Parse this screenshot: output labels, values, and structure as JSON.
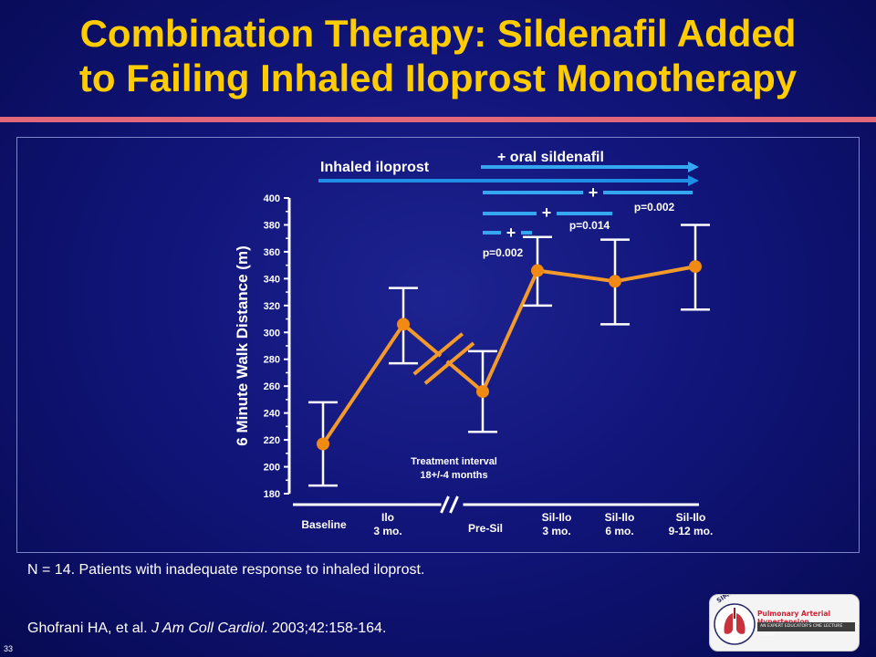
{
  "title_lines": [
    "Combination Therapy: Sildenafil Added",
    "to Failing Inhaled Iloprost Monotherapy"
  ],
  "footnote": "N = 14. Patients with inadequate response to inhaled iloprost.",
  "citation": {
    "prefix": "Ghofrani HA, et al. ",
    "journal": "J Am Coll Cardiol",
    "suffix": ". 2003;42:158-164."
  },
  "slide_number": "33",
  "logo": {
    "arc_text": "SIMPLY SPEAKING",
    "name": "Pulmonary Arterial Hypertension",
    "tagline": "AN EXPERT EDUCATOR'S CME LECTURE SERIES"
  },
  "colors": {
    "title": "#ffcc00",
    "series_line": "#f39a2a",
    "marker": "#f08a12",
    "arrow_iloprost": "#1f8fe6",
    "arrow_sildenafil": "#35a6f0",
    "axis": "#ffffff"
  },
  "chart_data": {
    "type": "line",
    "title": "",
    "ylabel": "6 Minute Walk Distance (m)",
    "ylim": [
      180,
      400
    ],
    "yticks": [
      180,
      200,
      220,
      240,
      260,
      280,
      300,
      320,
      340,
      360,
      380,
      400
    ],
    "categories": [
      [
        "Baseline"
      ],
      [
        "Ilo",
        "3 mo."
      ],
      [
        "Pre-Sil"
      ],
      [
        "Sil-Ilo",
        "3 mo."
      ],
      [
        "Sil-Ilo",
        "6 mo."
      ],
      [
        "Sil-Ilo",
        "9-12 mo."
      ]
    ],
    "series": [
      {
        "values": [
          217,
          306,
          256,
          346,
          338,
          349
        ],
        "error_low": [
          186,
          277,
          226,
          320,
          306,
          317
        ],
        "error_high": [
          248,
          333,
          286,
          371,
          369,
          380
        ]
      }
    ],
    "axis_break_between": [
      1,
      2
    ],
    "treatment_interval": [
      "Treatment interval",
      "18+/-4 months"
    ],
    "therapy_arrows": [
      {
        "label": "Inhaled iloprost",
        "from_category": 0
      },
      {
        "label": "+ oral sildenafil",
        "from_category": 3
      }
    ],
    "comparisons": [
      {
        "symbol": "+",
        "p_label": "p=0.002",
        "to_category": 3
      },
      {
        "symbol": "+",
        "p_label": "p=0.014",
        "to_category": 4
      },
      {
        "symbol": "+",
        "p_label": "p=0.002",
        "to_category": 5
      }
    ]
  }
}
